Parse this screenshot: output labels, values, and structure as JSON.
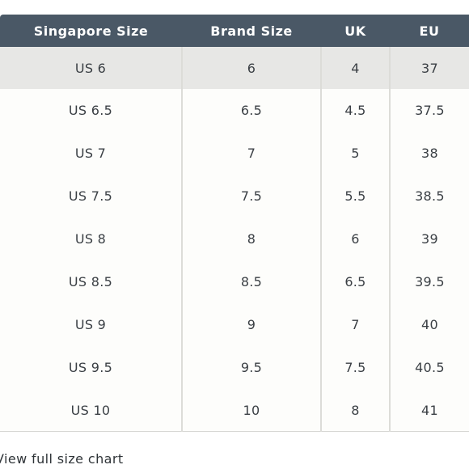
{
  "size_chart": {
    "headers": [
      "Singapore Size",
      "Brand Size",
      "UK",
      "EU"
    ],
    "rows": [
      [
        "US 6",
        "6",
        "4",
        "37"
      ],
      [
        "US 6.5",
        "6.5",
        "4.5",
        "37.5"
      ],
      [
        "US 7",
        "7",
        "5",
        "38"
      ],
      [
        "US 7.5",
        "7.5",
        "5.5",
        "38.5"
      ],
      [
        "US 8",
        "8",
        "6",
        "39"
      ],
      [
        "US 8.5",
        "8.5",
        "6.5",
        "39.5"
      ],
      [
        "US 9",
        "9",
        "7",
        "40"
      ],
      [
        "US 9.5",
        "9.5",
        "7.5",
        "40.5"
      ],
      [
        "US 10",
        "10",
        "8",
        "41"
      ]
    ],
    "highlighted_row": 0
  },
  "footer": {
    "link_label": "View full size chart"
  },
  "colors": {
    "header_bg": "#4a5866",
    "highlight_bg": "#e7e7e5"
  }
}
